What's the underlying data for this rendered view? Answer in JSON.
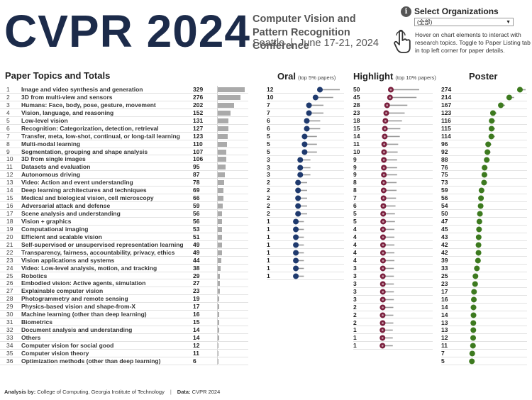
{
  "header": {
    "title": "CVPR 2024",
    "conference": "Computer Vision and Pattern Recognition Conference",
    "city": "Seattle",
    "dates": "June 17-21, 2024",
    "separator": "|"
  },
  "org_filter": {
    "info_glyph": "i",
    "label": "Select Organizations",
    "value": "(全部)",
    "hint": "Hover on chart elements to interact with research topics. Toggle to Paper Listing tab in top left corner for paper details."
  },
  "sections": {
    "topics": "Paper Topics and Totals",
    "oral": "Oral",
    "oral_sub": "(top 5% papers)",
    "highlight": "Highlight",
    "highlight_sub": "(top 10% papers)",
    "poster": "Poster"
  },
  "footer": {
    "analysis_label": "Analysis by",
    "analysis_value": "College of Computing, Georgia Institute of Technology",
    "data_label": "Data",
    "data_value": "CVPR 2024",
    "separator": "|"
  },
  "colors": {
    "oral": "#1f3a6e",
    "highlight": "#7a1f3d",
    "poster": "#3d7a1f",
    "bar": "#aaaaaa"
  },
  "chart_data": {
    "type": "table",
    "title": "Paper Topics and Totals",
    "topics": [
      {
        "rank": "1",
        "name": "Image and video synthesis and generation",
        "total": 329,
        "oral": 12,
        "highlight": 50,
        "poster": 274
      },
      {
        "rank": "2",
        "name": "3D from multi-view and sensors",
        "total": 276,
        "oral": 10,
        "highlight": 45,
        "poster": 214
      },
      {
        "rank": "3",
        "name": "Humans: Face, body, pose, gesture, movement",
        "total": 202,
        "oral": 7,
        "highlight": 28,
        "poster": 167
      },
      {
        "rank": "4",
        "name": "Vision, language, and reasoning",
        "total": 152,
        "oral": 7,
        "highlight": 23,
        "poster": 123
      },
      {
        "rank": "5",
        "name": "Low-level vision",
        "total": 131,
        "oral": 6,
        "highlight": 18,
        "poster": 116
      },
      {
        "rank": "6",
        "name": "Recognition: Categorization, detection, retrieval",
        "total": 127,
        "oral": 6,
        "highlight": 15,
        "poster": 115
      },
      {
        "rank": "7",
        "name": "Transfer, meta, low-shot, continual, or long-tail learning",
        "total": 123,
        "oral": 5,
        "highlight": 14,
        "poster": 114
      },
      {
        "rank": "8",
        "name": "Multi-modal learning",
        "total": 110,
        "oral": 5,
        "highlight": 11,
        "poster": 96
      },
      {
        "rank": "9",
        "name": "Segmentation, grouping and shape analysis",
        "total": 107,
        "oral": 5,
        "highlight": 10,
        "poster": 92
      },
      {
        "rank": "10",
        "name": "3D from single images",
        "total": 106,
        "oral": 3,
        "highlight": 9,
        "poster": 88
      },
      {
        "rank": "11",
        "name": "Datasets and evaluation",
        "total": 95,
        "oral": 3,
        "highlight": 9,
        "poster": 76
      },
      {
        "rank": "12",
        "name": "Autonomous driving",
        "total": 87,
        "oral": 3,
        "highlight": 9,
        "poster": 75
      },
      {
        "rank": "13",
        "name": "Video: Action and event understanding",
        "total": 78,
        "oral": 2,
        "highlight": 8,
        "poster": 73
      },
      {
        "rank": "14",
        "name": "Deep learning architectures and techniques",
        "total": 69,
        "oral": 2,
        "highlight": 8,
        "poster": 59
      },
      {
        "rank": "15",
        "name": "Medical and biological vision, cell microscopy",
        "total": 66,
        "oral": 2,
        "highlight": 7,
        "poster": 56
      },
      {
        "rank": "16",
        "name": "Adversarial attack and defense",
        "total": 59,
        "oral": 2,
        "highlight": 6,
        "poster": 54
      },
      {
        "rank": "17",
        "name": "Scene analysis and understanding",
        "total": 56,
        "oral": 2,
        "highlight": 5,
        "poster": 50
      },
      {
        "rank": "18",
        "name": "Vision + graphics",
        "total": 56,
        "oral": 1,
        "highlight": 5,
        "poster": 47
      },
      {
        "rank": "19",
        "name": "Computational imaging",
        "total": 53,
        "oral": 1,
        "highlight": 4,
        "poster": 45
      },
      {
        "rank": "20",
        "name": "Efficient and scalable vision",
        "total": 51,
        "oral": 1,
        "highlight": 4,
        "poster": 43
      },
      {
        "rank": "21",
        "name": "Self-supervised or unsupervised representation learning",
        "total": 49,
        "oral": 1,
        "highlight": 4,
        "poster": 42
      },
      {
        "rank": "22",
        "name": "Transparency, fairness, accountability, privacy, ethics",
        "total": 49,
        "oral": 1,
        "highlight": 4,
        "poster": 42
      },
      {
        "rank": "23",
        "name": "Vision applications and systems",
        "total": 44,
        "oral": 1,
        "highlight": 4,
        "poster": 39
      },
      {
        "rank": "24",
        "name": "Video: Low-level analysis, motion, and tracking",
        "total": 38,
        "oral": 1,
        "highlight": 3,
        "poster": 33
      },
      {
        "rank": "25",
        "name": "Robotics",
        "total": 29,
        "oral": 1,
        "highlight": 3,
        "poster": 25
      },
      {
        "rank": "26",
        "name": "Embodied vision: Active agents, simulation",
        "total": 27,
        "oral": null,
        "highlight": 3,
        "poster": 23
      },
      {
        "rank": "27",
        "name": "Explainable computer vision",
        "total": 23,
        "oral": null,
        "highlight": 3,
        "poster": 17
      },
      {
        "rank": "28",
        "name": "Photogrammetry and remote sensing",
        "total": 19,
        "oral": null,
        "highlight": 3,
        "poster": 16
      },
      {
        "rank": "29",
        "name": "Physics-based vision and shape-from-X",
        "total": 17,
        "oral": null,
        "highlight": 2,
        "poster": 14
      },
      {
        "rank": "30",
        "name": "Machine learning (other than deep learning)",
        "total": 16,
        "oral": null,
        "highlight": 2,
        "poster": 14
      },
      {
        "rank": "31",
        "name": "Biometrics",
        "total": 15,
        "oral": null,
        "highlight": 2,
        "poster": 13
      },
      {
        "rank": "32",
        "name": "Document analysis and understanding",
        "total": 14,
        "oral": null,
        "highlight": 1,
        "poster": 13
      },
      {
        "rank": "33",
        "name": "Others",
        "total": 14,
        "oral": null,
        "highlight": 1,
        "poster": 12
      },
      {
        "rank": "34",
        "name": "Computer vision for social good",
        "total": 12,
        "oral": null,
        "highlight": 1,
        "poster": 11
      },
      {
        "rank": "35",
        "name": "Computer vision theory",
        "total": 11,
        "oral": null,
        "highlight": null,
        "poster": 7
      },
      {
        "rank": "36",
        "name": "Optimization methods (other than deep learning)",
        "total": 6,
        "oral": null,
        "highlight": null,
        "poster": 5
      }
    ],
    "axis_max": {
      "total": 329,
      "oral": 12,
      "highlight": 50,
      "poster": 274
    }
  }
}
